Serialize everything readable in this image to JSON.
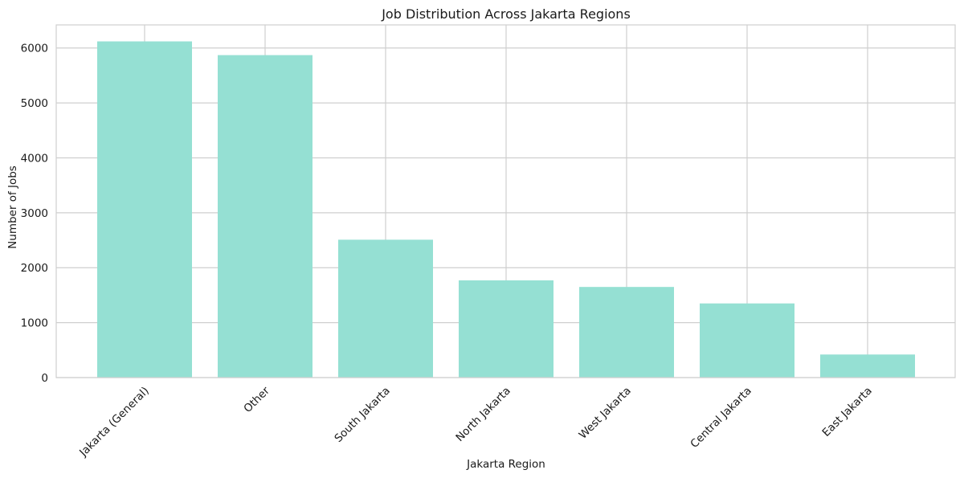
{
  "chart_data": {
    "type": "bar",
    "title": "Job Distribution Across Jakarta Regions",
    "xlabel": "Jakarta Region",
    "ylabel": "Number of Jobs",
    "categories": [
      "Jakarta (General)",
      "Other",
      "South Jakarta",
      "North Jakarta",
      "West Jakarta",
      "Central Jakarta",
      "East Jakarta"
    ],
    "values": [
      6120,
      5870,
      2510,
      1770,
      1650,
      1350,
      420
    ],
    "ylim": [
      0,
      6420
    ],
    "yticks": [
      0,
      1000,
      2000,
      3000,
      4000,
      5000,
      6000
    ],
    "grid": true,
    "bar_color": "#95e0d3",
    "grid_color": "#cfcfcf"
  }
}
